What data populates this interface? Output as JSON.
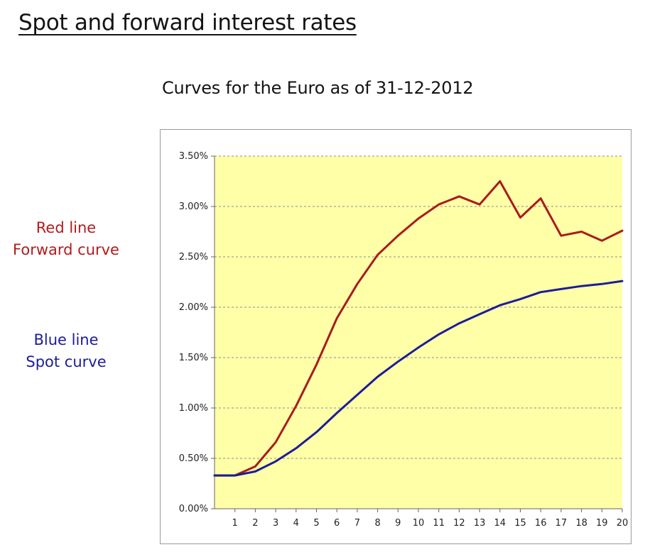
{
  "slide": {
    "title": "Spot and forward interest rates",
    "chart_heading": "Curves for the Euro as of 31-12-2012"
  },
  "legend_notes": {
    "red": {
      "line1": "Red line",
      "line2": "Forward curve",
      "color": "#b01c1c"
    },
    "blue": {
      "line1": "Blue line",
      "line2": "Spot curve",
      "color": "#1c1c9c"
    }
  },
  "chart_data": {
    "type": "line",
    "title": "Curves for the Euro as of 31-12-2012",
    "x": [
      0,
      1,
      2,
      3,
      4,
      5,
      6,
      7,
      8,
      9,
      10,
      11,
      12,
      13,
      14,
      15,
      16,
      17,
      18,
      19,
      20
    ],
    "x_tick_labels": [
      "1",
      "2",
      "3",
      "4",
      "5",
      "6",
      "7",
      "8",
      "9",
      "10",
      "11",
      "12",
      "13",
      "14",
      "15",
      "16",
      "17",
      "18",
      "19",
      "20"
    ],
    "y_tick_labels": [
      "0.00%",
      "0.50%",
      "1.00%",
      "1.50%",
      "2.00%",
      "2.50%",
      "3.00%",
      "3.50%"
    ],
    "ylim": [
      0,
      3.5
    ],
    "xlim": [
      0,
      20
    ],
    "grid": "horizontal dashed",
    "plot_background": "#ffffa8",
    "series": [
      {
        "key": "forward",
        "color": "#a81c1c",
        "values": [
          0.33,
          0.33,
          0.42,
          0.66,
          1.02,
          1.43,
          1.89,
          2.23,
          2.52,
          2.71,
          2.88,
          3.02,
          3.1,
          3.02,
          3.25,
          2.89,
          3.08,
          2.71,
          2.75,
          2.66,
          2.76
        ]
      },
      {
        "key": "spot",
        "color": "#1c1c9c",
        "values": [
          0.33,
          0.33,
          0.37,
          0.47,
          0.6,
          0.76,
          0.95,
          1.13,
          1.31,
          1.46,
          1.6,
          1.73,
          1.84,
          1.93,
          2.02,
          2.08,
          2.15,
          2.18,
          2.21,
          2.23,
          2.26
        ]
      }
    ]
  }
}
